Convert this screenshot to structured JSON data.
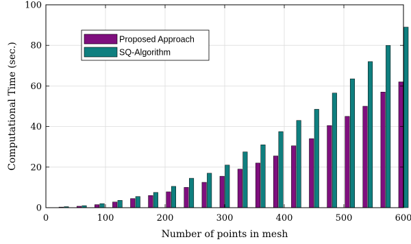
{
  "chart_data": {
    "type": "bar",
    "xlabel": "Number of points in mesh",
    "ylabel": "Computational Time (sec.)",
    "xlim": [
      0,
      600
    ],
    "ylim": [
      0,
      100
    ],
    "xticks": [
      "0",
      "100",
      "200",
      "300",
      "400",
      "500",
      "600"
    ],
    "yticks": [
      "0",
      "20",
      "40",
      "60",
      "80",
      "100"
    ],
    "grid": true,
    "legend_position": "top-left",
    "x": [
      30,
      60,
      90,
      120,
      150,
      180,
      210,
      240,
      270,
      300,
      330,
      360,
      390,
      420,
      450,
      480,
      510,
      540,
      570,
      600
    ],
    "series": [
      {
        "name": "Proposed Approach",
        "color": "#7f0f7e",
        "values": [
          0.3,
          0.7,
          1.5,
          2.8,
          4.5,
          6,
          7.8,
          10,
          12.5,
          15.5,
          19,
          22,
          25.5,
          30.5,
          34,
          40.5,
          45,
          50,
          57,
          62
        ]
      },
      {
        "name": "SQ-Algorithm",
        "color": "#0f7f7f",
        "values": [
          0.5,
          1,
          2,
          3.6,
          5.5,
          7.5,
          10.5,
          14.5,
          17,
          21,
          27.5,
          31,
          37.5,
          43,
          48.5,
          56.5,
          63.5,
          72,
          80,
          89
        ]
      }
    ]
  }
}
